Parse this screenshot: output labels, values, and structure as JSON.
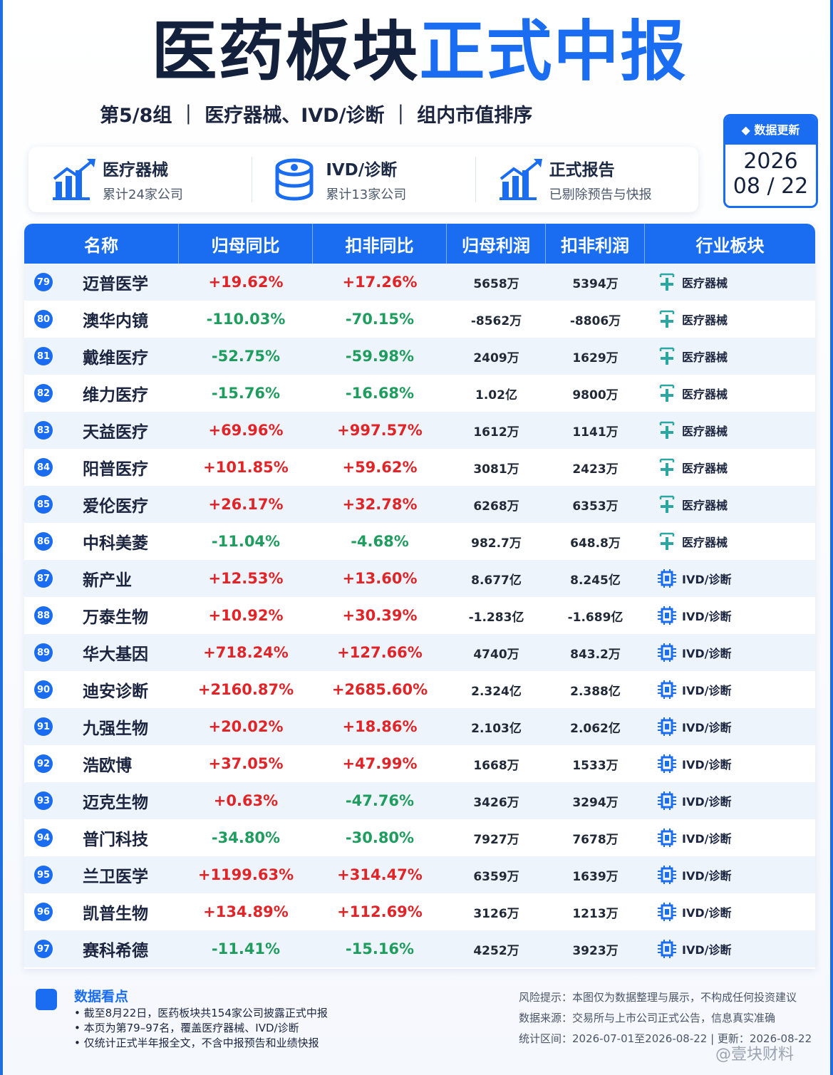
{
  "title": {
    "dark": "医药板块",
    "blue": "正式中报"
  },
  "subtitle": "第5/8组 ｜ 医疗器械、IVD/诊断 ｜ 组内市值排序",
  "cards": [
    {
      "title": "医疗器械",
      "sub": "累计24家公司",
      "icon": "chart-up-icon"
    },
    {
      "title": "IVD/诊断",
      "sub": "累计13家公司",
      "icon": "database-icon"
    },
    {
      "title": "正式报告",
      "sub": "已剔除预告与快报",
      "icon": "chart-up-icon"
    }
  ],
  "update": {
    "label": "◆ 数据更新",
    "year": "2026",
    "monthday": "08 / 22"
  },
  "table": {
    "headers": [
      "名称",
      "归母同比",
      "扣非同比",
      "归母利润",
      "扣非利润",
      "行业板块"
    ],
    "rows": [
      {
        "rank": "79",
        "name": "迈普医学",
        "yoy": "+19.62%",
        "yoy_dir": "pos",
        "kf_yoy": "+17.26%",
        "kf_dir": "pos",
        "profit": "5658万",
        "kf_profit": "5394万",
        "sector": "医疗器械"
      },
      {
        "rank": "80",
        "name": "澳华内镜",
        "yoy": "-110.03%",
        "yoy_dir": "neg",
        "kf_yoy": "-70.15%",
        "kf_dir": "neg",
        "profit": "-8562万",
        "kf_profit": "-8806万",
        "sector": "医疗器械"
      },
      {
        "rank": "81",
        "name": "戴维医疗",
        "yoy": "-52.75%",
        "yoy_dir": "neg",
        "kf_yoy": "-59.98%",
        "kf_dir": "neg",
        "profit": "2409万",
        "kf_profit": "1629万",
        "sector": "医疗器械"
      },
      {
        "rank": "82",
        "name": "维力医疗",
        "yoy": "-15.76%",
        "yoy_dir": "neg",
        "kf_yoy": "-16.68%",
        "kf_dir": "neg",
        "profit": "1.02亿",
        "kf_profit": "9800万",
        "sector": "医疗器械"
      },
      {
        "rank": "83",
        "name": "天益医疗",
        "yoy": "+69.96%",
        "yoy_dir": "pos",
        "kf_yoy": "+997.57%",
        "kf_dir": "pos",
        "profit": "1612万",
        "kf_profit": "1141万",
        "sector": "医疗器械"
      },
      {
        "rank": "84",
        "name": "阳普医疗",
        "yoy": "+101.85%",
        "yoy_dir": "pos",
        "kf_yoy": "+59.62%",
        "kf_dir": "pos",
        "profit": "3081万",
        "kf_profit": "2423万",
        "sector": "医疗器械"
      },
      {
        "rank": "85",
        "name": "爱伦医疗",
        "yoy": "+26.17%",
        "yoy_dir": "pos",
        "kf_yoy": "+32.78%",
        "kf_dir": "pos",
        "profit": "6268万",
        "kf_profit": "6353万",
        "sector": "医疗器械"
      },
      {
        "rank": "86",
        "name": "中科美菱",
        "yoy": "-11.04%",
        "yoy_dir": "neg",
        "kf_yoy": "-4.68%",
        "kf_dir": "neg",
        "profit": "982.7万",
        "kf_profit": "648.8万",
        "sector": "医疗器械"
      },
      {
        "rank": "87",
        "name": "新产业",
        "yoy": "+12.53%",
        "yoy_dir": "pos",
        "kf_yoy": "+13.60%",
        "kf_dir": "pos",
        "profit": "8.677亿",
        "kf_profit": "8.245亿",
        "sector": "IVD/诊断"
      },
      {
        "rank": "88",
        "name": "万泰生物",
        "yoy": "+10.92%",
        "yoy_dir": "pos",
        "kf_yoy": "+30.39%",
        "kf_dir": "pos",
        "profit": "-1.283亿",
        "kf_profit": "-1.689亿",
        "sector": "IVD/诊断"
      },
      {
        "rank": "89",
        "name": "华大基因",
        "yoy": "+718.24%",
        "yoy_dir": "pos",
        "kf_yoy": "+127.66%",
        "kf_dir": "pos",
        "profit": "4740万",
        "kf_profit": "843.2万",
        "sector": "IVD/诊断"
      },
      {
        "rank": "90",
        "name": "迪安诊断",
        "yoy": "+2160.87%",
        "yoy_dir": "pos",
        "kf_yoy": "+2685.60%",
        "kf_dir": "pos",
        "profit": "2.324亿",
        "kf_profit": "2.388亿",
        "sector": "IVD/诊断"
      },
      {
        "rank": "91",
        "name": "九强生物",
        "yoy": "+20.02%",
        "yoy_dir": "pos",
        "kf_yoy": "+18.86%",
        "kf_dir": "pos",
        "profit": "2.103亿",
        "kf_profit": "2.062亿",
        "sector": "IVD/诊断"
      },
      {
        "rank": "92",
        "name": "浩欧博",
        "yoy": "+37.05%",
        "yoy_dir": "pos",
        "kf_yoy": "+47.99%",
        "kf_dir": "pos",
        "profit": "1668万",
        "kf_profit": "1533万",
        "sector": "IVD/诊断"
      },
      {
        "rank": "93",
        "name": "迈克生物",
        "yoy": "+0.63%",
        "yoy_dir": "pos",
        "kf_yoy": "-47.76%",
        "kf_dir": "neg",
        "profit": "3426万",
        "kf_profit": "3294万",
        "sector": "IVD/诊断"
      },
      {
        "rank": "94",
        "name": "普门科技",
        "yoy": "-34.80%",
        "yoy_dir": "neg",
        "kf_yoy": "-30.80%",
        "kf_dir": "neg",
        "profit": "7927万",
        "kf_profit": "7678万",
        "sector": "IVD/诊断"
      },
      {
        "rank": "95",
        "name": "兰卫医学",
        "yoy": "+1199.63%",
        "yoy_dir": "pos",
        "kf_yoy": "+314.47%",
        "kf_dir": "pos",
        "profit": "6359万",
        "kf_profit": "1639万",
        "sector": "IVD/诊断"
      },
      {
        "rank": "96",
        "name": "凯普生物",
        "yoy": "+134.89%",
        "yoy_dir": "pos",
        "kf_yoy": "+112.69%",
        "kf_dir": "pos",
        "profit": "3126万",
        "kf_profit": "1213万",
        "sector": "IVD/诊断"
      },
      {
        "rank": "97",
        "name": "赛科希德",
        "yoy": "-11.41%",
        "yoy_dir": "neg",
        "kf_yoy": "-15.16%",
        "kf_dir": "neg",
        "profit": "4252万",
        "kf_profit": "3923万",
        "sector": "IVD/诊断"
      }
    ]
  },
  "notes": {
    "title": "数据看点",
    "items": [
      "截至8月22日，医药板块共154家公司披露正式中报",
      "本页为第79–97名，覆盖医疗器械、IVD/诊断",
      "仅统计正式半年报全文，不含中报预告和业绩快报"
    ]
  },
  "footer": {
    "risk": "风险提示：本图仅为数据整理与展示，不构成任何投资建议",
    "source": "数据来源：交易所与上市公司正式公告，信息真实准确",
    "period": "统计区间：2026-07-01至2026-08-22 | 更新：2026-08-22"
  },
  "watermark": "@壹块财料",
  "colors": {
    "accent": "#1a6df0",
    "positive": "#e02428",
    "negative": "#1f9d5e",
    "dark": "#14213d"
  }
}
